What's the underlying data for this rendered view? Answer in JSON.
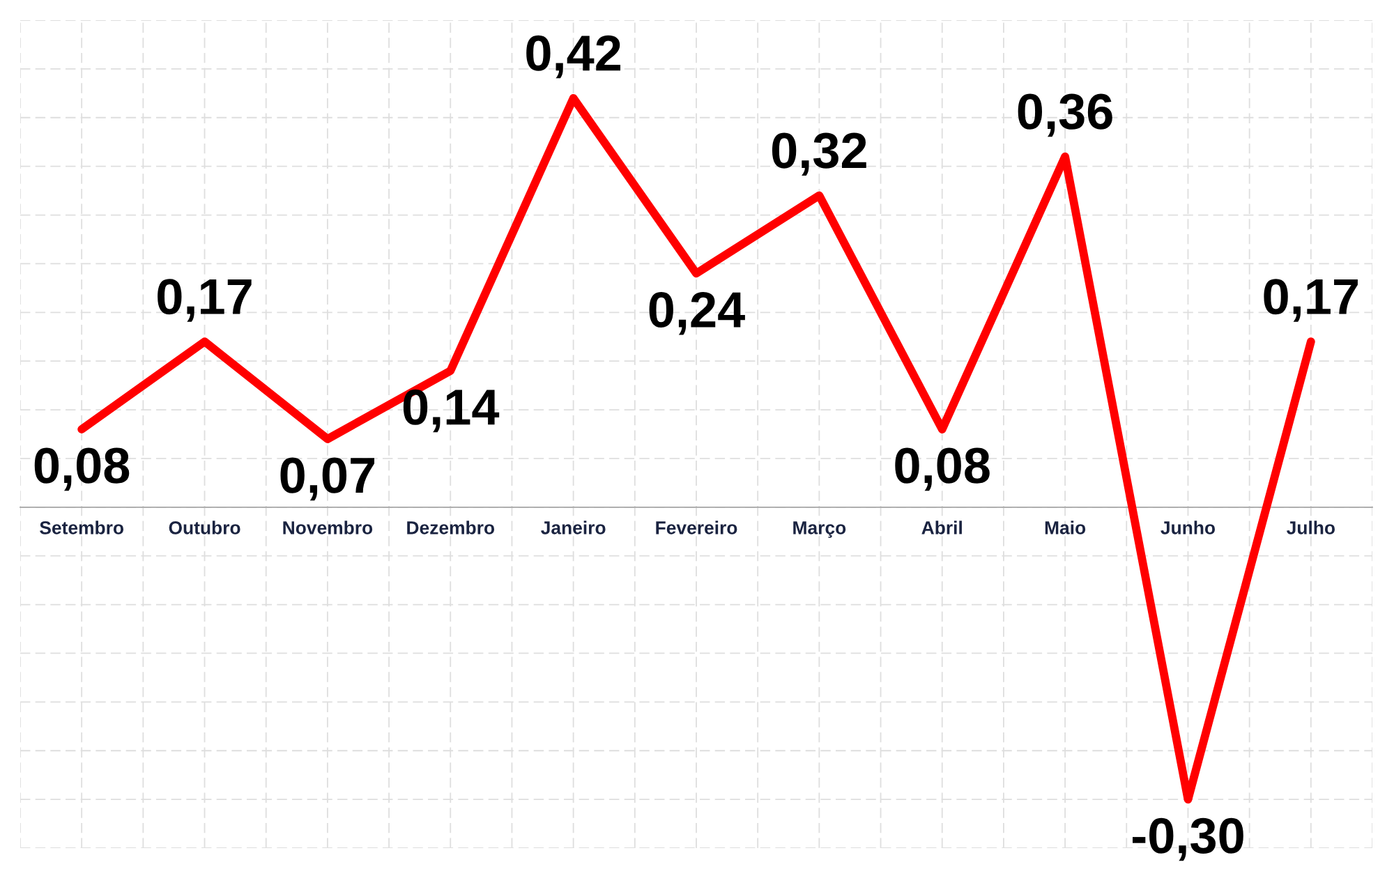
{
  "chart_data": {
    "type": "line",
    "categories": [
      "Setembro",
      "Outubro",
      "Novembro",
      "Dezembro",
      "Janeiro",
      "Fevereiro",
      "Março",
      "Abril",
      "Maio",
      "Junho",
      "Julho"
    ],
    "series": [
      {
        "color": "#ff0000",
        "values": [
          0.08,
          0.17,
          0.07,
          0.14,
          0.42,
          0.24,
          0.32,
          0.08,
          0.36,
          -0.3,
          0.17
        ],
        "value_labels": [
          "0,08",
          "0,17",
          "0,07",
          "0,14",
          "0,42",
          "0,24",
          "0,32",
          "0,08",
          "0,36",
          "-0,30",
          "0,17"
        ]
      }
    ],
    "ylim": [
      -0.35,
      0.5
    ],
    "yticks": [
      {
        "value": -0.35,
        "label": null
      },
      {
        "value": -0.3,
        "label": null
      },
      {
        "value": -0.25,
        "label": null
      },
      {
        "value": -0.2,
        "label": null
      },
      {
        "value": -0.15,
        "label": null
      },
      {
        "value": -0.1,
        "label": null
      },
      {
        "value": -0.05,
        "label": null
      },
      {
        "value": 0,
        "label": null
      },
      {
        "value": 0.05,
        "label": null
      },
      {
        "value": 0.1,
        "label": null
      },
      {
        "value": 0.15,
        "label": null
      },
      {
        "value": 0.2,
        "label": null
      },
      {
        "value": 0.25,
        "label": null
      },
      {
        "value": 0.3,
        "label": null
      },
      {
        "value": 0.35,
        "label": null
      },
      {
        "value": 0.4,
        "label": null
      },
      {
        "value": 0.45,
        "label": null
      },
      {
        "value": 0.5,
        "label": null
      }
    ],
    "grid": true,
    "tick_labels": "x"
  }
}
